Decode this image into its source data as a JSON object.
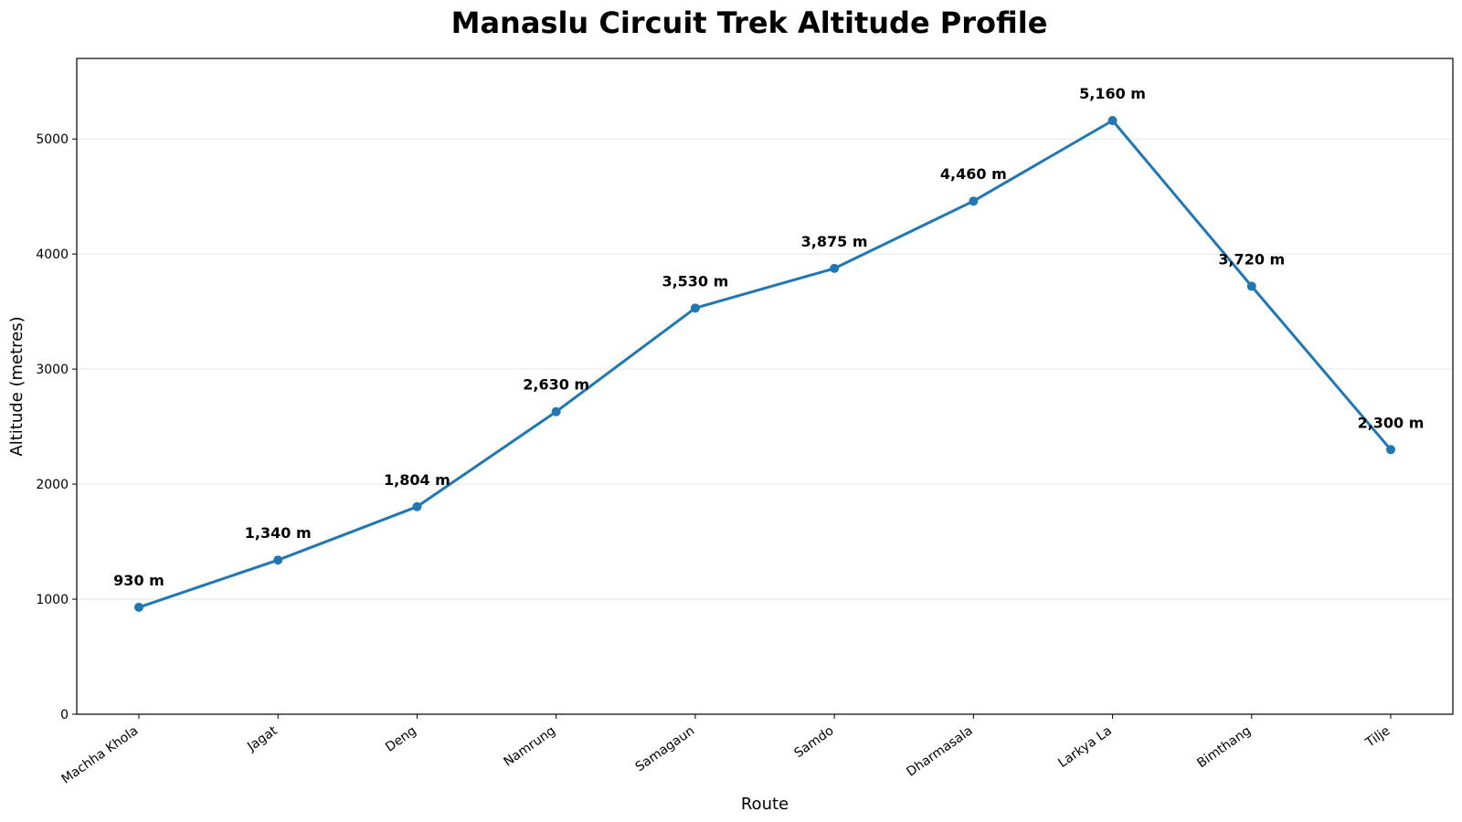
{
  "chart_data": {
    "type": "line",
    "title": "Manaslu Circuit Trek Altitude Profile",
    "xlabel": "Route",
    "ylabel": "Altitude (metres)",
    "categories": [
      "Machha Khola",
      "Jagat",
      "Deng",
      "Namrung",
      "Samagaun",
      "Samdo",
      "Dharmasala",
      "Larkya La",
      "Bimthang",
      "Tilje"
    ],
    "values": [
      930,
      1340,
      1804,
      2630,
      3530,
      3875,
      4460,
      5160,
      3720,
      2300
    ],
    "data_labels": [
      "930 m",
      "1,340 m",
      "1,804 m",
      "2,630 m",
      "3,530 m",
      "3,875 m",
      "4,460 m",
      "5,160 m",
      "3,720 m",
      "2,300 m"
    ],
    "ylim": [
      0,
      5700
    ],
    "yticks": [
      0,
      1000,
      2000,
      3000,
      4000,
      5000
    ],
    "grid": "horizontal",
    "line_color": "#1f77b4"
  }
}
